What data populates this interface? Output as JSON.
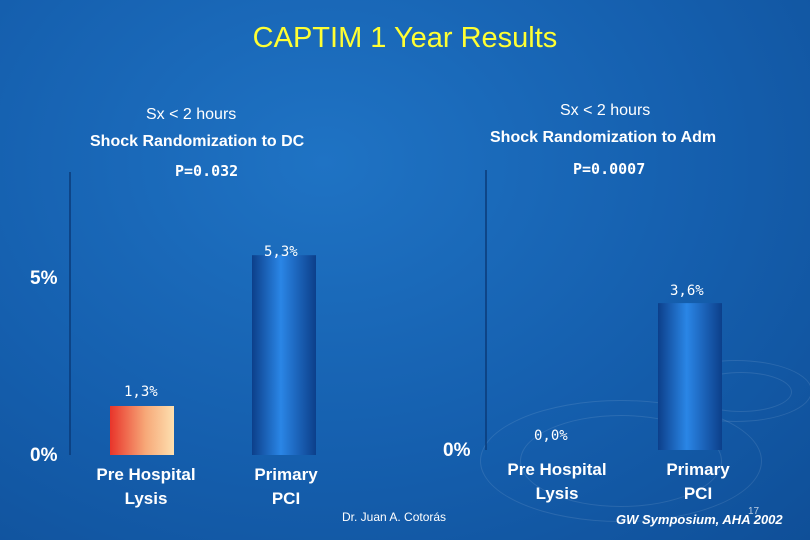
{
  "title": "CAPTIM 1 Year Results",
  "footer": {
    "author": "Dr. Juan A. Cotorás",
    "source": "GW Symposium, AHA 2002",
    "page": "17"
  },
  "colors": {
    "title": "#ffff33",
    "bar_blue": "#1a6fd0",
    "bar_red": "#e8342a",
    "bar_cream": "#fde0b0"
  },
  "chart_data": [
    {
      "type": "bar",
      "label_line1": "Sx < 2 hours",
      "label_line2": "Shock Randomization to DC",
      "pvalue": "P=0.032",
      "categories": [
        "Pre Hospital Lysis",
        "Primary PCI"
      ],
      "category_lines": [
        [
          "Pre Hospital",
          "Lysis"
        ],
        [
          "Primary",
          "PCI"
        ]
      ],
      "values": [
        1.3,
        5.3
      ],
      "value_labels": [
        "1,3%",
        "5,3%"
      ],
      "yticks": [
        "0%",
        "5%"
      ],
      "ylim": [
        0,
        6.5
      ],
      "bar_styles": [
        "red",
        "blue"
      ]
    },
    {
      "type": "bar",
      "label_line1": "Sx < 2 hours",
      "label_line2": "Shock Randomization to Adm",
      "pvalue": "P=0.0007",
      "categories": [
        "Pre Hospital Lysis",
        "Primary PCI"
      ],
      "category_lines": [
        [
          "Pre Hospital",
          "Lysis"
        ],
        [
          "Primary",
          "PCI"
        ]
      ],
      "values": [
        0.0,
        3.6
      ],
      "value_labels": [
        "0,0%",
        "3,6%"
      ],
      "yticks": [
        "0%"
      ],
      "ylim": [
        0,
        6.5
      ],
      "bar_styles": [
        "blue",
        "blue"
      ]
    }
  ]
}
